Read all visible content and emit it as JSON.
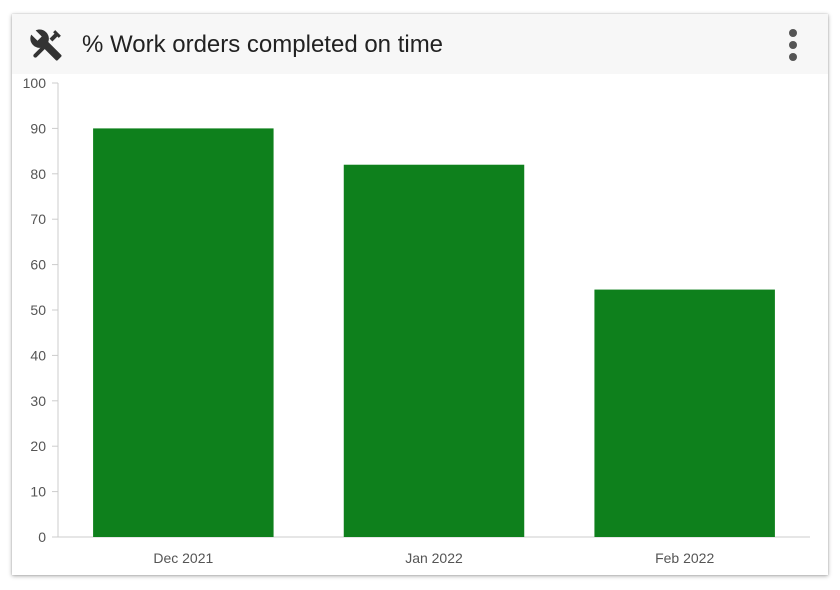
{
  "widget": {
    "title": "% Work orders completed on time",
    "icon": "tools-icon",
    "menu_icon": "kebab-menu-icon"
  },
  "colors": {
    "bar": "#0e801c",
    "header_bg": "#f7f7f7",
    "axis": "#cccccc",
    "tick_text": "#555555"
  },
  "chart_data": {
    "type": "bar",
    "categories": [
      "Dec 2021",
      "Jan 2022",
      "Feb 2022"
    ],
    "values": [
      90,
      82,
      54.5
    ],
    "title": "% Work orders completed on time",
    "xlabel": "",
    "ylabel": "",
    "ylim": [
      0,
      100
    ],
    "yticks": [
      0,
      10,
      20,
      30,
      40,
      50,
      60,
      70,
      80,
      90,
      100
    ],
    "grid": false,
    "legend": "none"
  }
}
